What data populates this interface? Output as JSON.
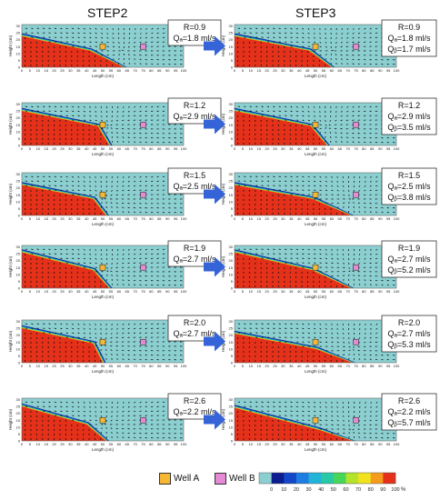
{
  "columns": [
    {
      "title": "STEP2"
    },
    {
      "title": "STEP3"
    }
  ],
  "axis": {
    "x_label": "Length (cm)",
    "y_label": "Height (cm)",
    "x_ticks": [
      "0",
      "5",
      "10",
      "15",
      "20",
      "25",
      "30",
      "35",
      "40",
      "45",
      "50",
      "55",
      "60",
      "65",
      "70",
      "75",
      "80",
      "85",
      "90",
      "95",
      "100"
    ],
    "y_ticks": [
      "0",
      "5",
      "10",
      "15",
      "20",
      "25",
      "30"
    ]
  },
  "panels": [
    {
      "step": "STEP2",
      "lines": [
        "R=0.9",
        "Qₐ=1.8 ml/s"
      ],
      "interface": {
        "y0": 22.5,
        "mid_x": 42,
        "mid_y": 12,
        "end_x": 63,
        "end_y": 0
      }
    },
    {
      "step": "STEP3",
      "lines": [
        "R=0.9",
        "Qₐ=1.8 ml/s",
        "Qᵦ=1.7 ml/s"
      ],
      "interface": {
        "y0": 22.5,
        "mid_x": 46,
        "mid_y": 12,
        "end_x": 60,
        "end_y": 0
      }
    },
    {
      "step": "STEP2",
      "lines": [
        "R=1.2",
        "Qₐ=2.9 ml/s"
      ],
      "interface": {
        "y0": 25,
        "mid_x": 47,
        "mid_y": 14,
        "end_x": 54,
        "end_y": 0
      }
    },
    {
      "step": "STEP3",
      "lines": [
        "R=1.2",
        "Qₐ=2.9 ml/s",
        "Qᵦ=3.5 ml/s"
      ],
      "interface": {
        "y0": 25,
        "mid_x": 47,
        "mid_y": 14,
        "end_x": 57,
        "end_y": 0
      }
    },
    {
      "step": "STEP2",
      "lines": [
        "R=1.5",
        "Qₐ=2.5 ml/s"
      ],
      "interface": {
        "y0": 22,
        "mid_x": 44,
        "mid_y": 12,
        "end_x": 52,
        "end_y": 0
      }
    },
    {
      "step": "STEP3",
      "lines": [
        "R=1.5",
        "Qₐ=2.5 ml/s",
        "Qᵦ=3.8 ml/s"
      ],
      "interface": {
        "y0": 22,
        "mid_x": 48,
        "mid_y": 12,
        "end_x": 72,
        "end_y": 0
      }
    },
    {
      "step": "STEP2",
      "lines": [
        "R=1.9",
        "Qₐ=2.7 ml/s"
      ],
      "interface": {
        "y0": 26,
        "mid_x": 44,
        "mid_y": 13,
        "end_x": 54,
        "end_y": 0
      }
    },
    {
      "step": "STEP3",
      "lines": [
        "R=1.9",
        "Qₐ=2.7 ml/s",
        "Qᵦ=5.2 ml/s"
      ],
      "interface": {
        "y0": 26,
        "mid_x": 48,
        "mid_y": 13,
        "end_x": 72,
        "end_y": 0
      }
    },
    {
      "step": "STEP2",
      "lines": [
        "R=2.0",
        "Qₐ=2.7 ml/s"
      ],
      "interface": {
        "y0": 25,
        "mid_x": 44,
        "mid_y": 14,
        "end_x": 50,
        "end_y": 0
      }
    },
    {
      "step": "STEP3",
      "lines": [
        "R=2.0",
        "Qₐ=2.7 ml/s",
        "Qᵦ=5.3 ml/s"
      ],
      "interface": {
        "y0": 21,
        "mid_x": 50,
        "mid_y": 10,
        "end_x": 73,
        "end_y": 0
      }
    },
    {
      "step": "STEP2",
      "lines": [
        "R=2.6",
        "Qₐ=2.2 ml/s"
      ],
      "interface": {
        "y0": 25,
        "mid_x": 40,
        "mid_y": 12,
        "end_x": 52,
        "end_y": 0
      }
    },
    {
      "step": "STEP3",
      "lines": [
        "R=2.6",
        "Qₐ=2.2 ml/s",
        "Qᵦ=5.7 ml/s"
      ],
      "interface": {
        "y0": 24,
        "mid_x": 52,
        "mid_y": 8,
        "end_x": 73,
        "end_y": 0
      }
    }
  ],
  "wells": {
    "A": {
      "x": 50,
      "y": 15,
      "color": "#f7b731",
      "label": "Well A"
    },
    "B": {
      "x": 75,
      "y": 15,
      "color": "#e58ad6",
      "label": "Well B"
    }
  },
  "colorbar": {
    "ticks": [
      "0",
      "10",
      "20",
      "30",
      "40",
      "50",
      "60",
      "70",
      "80",
      "90",
      "100"
    ],
    "unit": "%",
    "colors": [
      "#8ccfd1",
      "#0b1d8f",
      "#1346c8",
      "#1e7de0",
      "#22b3d9",
      "#27c9a6",
      "#47d65a",
      "#b3e32b",
      "#f2e21e",
      "#f59c1c",
      "#e5301a"
    ]
  },
  "colors": {
    "background_fluid": "#8ccfd1",
    "dense_fluid": "#e5301a",
    "arrow_blue": "#3563d8"
  }
}
